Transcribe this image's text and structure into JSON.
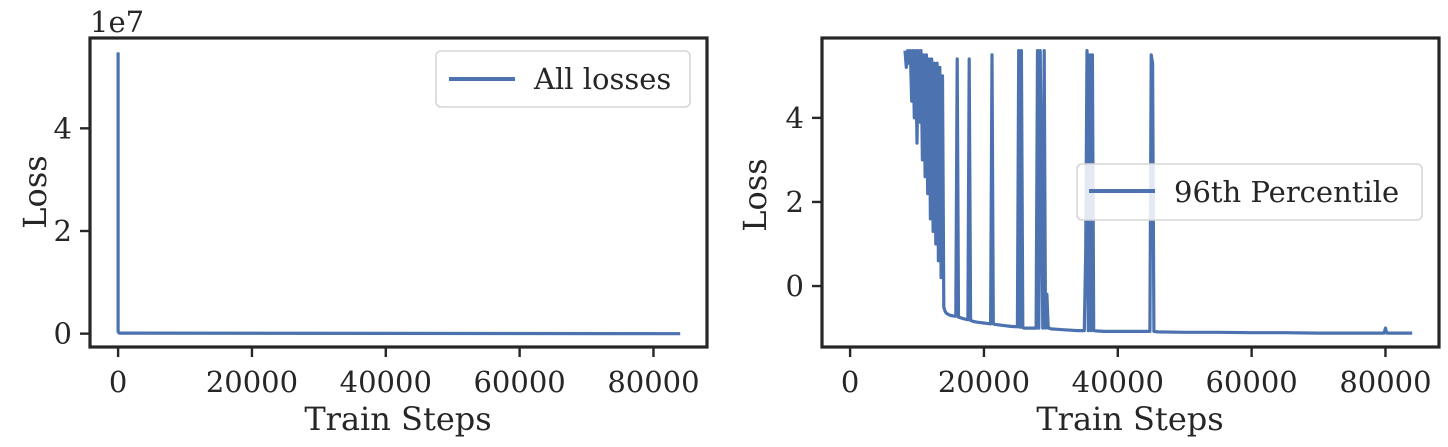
{
  "chart_data": [
    {
      "type": "line",
      "title": "",
      "xlabel": "Train Steps",
      "ylabel": "Loss",
      "y_offset_label": "1e7",
      "xlim": [
        -4200,
        88000
      ],
      "ylim": [
        -2.6,
        57.6
      ],
      "y_scale_factor": 10000000,
      "xticks": [
        0,
        20000,
        40000,
        60000,
        80000
      ],
      "xtick_labels": [
        "0",
        "20000",
        "40000",
        "60000",
        "80000"
      ],
      "yticks": [
        0,
        20,
        40
      ],
      "ytick_labels": [
        "0",
        "2",
        "4"
      ],
      "legend_position": "upper right",
      "grid": false,
      "series": [
        {
          "name": "All losses",
          "color": "#4c72b0",
          "x": [
            0,
            1,
            150,
            84000
          ],
          "y": [
            54.8,
            0.4,
            0.1,
            0.0
          ]
        }
      ]
    },
    {
      "type": "line",
      "title": "",
      "xlabel": "Train Steps",
      "ylabel": "Loss",
      "xlim": [
        -4200,
        88000
      ],
      "ylim": [
        -1.45,
        5.9
      ],
      "xticks": [
        0,
        20000,
        40000,
        60000,
        80000
      ],
      "xtick_labels": [
        "0",
        "20000",
        "40000",
        "60000",
        "80000"
      ],
      "yticks": [
        0,
        2,
        4
      ],
      "ytick_labels": [
        "0",
        "2",
        "4"
      ],
      "legend_position": "center right",
      "grid": false,
      "series": [
        {
          "name": "96th Percentile",
          "color": "#4c72b0",
          "x": [
            8200,
            8400,
            8600,
            8800,
            9000,
            9200,
            9400,
            9600,
            9800,
            10000,
            10200,
            10400,
            10600,
            10800,
            11000,
            11200,
            11400,
            11600,
            11800,
            12000,
            12200,
            12400,
            12600,
            12800,
            13000,
            13200,
            13400,
            13600,
            13800,
            14000,
            14200,
            14400,
            15000,
            15800,
            16000,
            16200,
            16400,
            17000,
            17600,
            17800,
            18000,
            18200,
            18400,
            19000,
            20000,
            21000,
            21200,
            21400,
            21600,
            22000,
            23000,
            24000,
            25000,
            25200,
            25400,
            25600,
            25800,
            26000,
            27000,
            27800,
            28000,
            28200,
            28400,
            28800,
            29000,
            29200,
            29400,
            29600,
            29800,
            30000,
            31000,
            32000,
            33000,
            34000,
            35000,
            35200,
            35400,
            35600,
            35800,
            36000,
            36200,
            36400,
            37000,
            38000,
            40000,
            42000,
            44000,
            44800,
            45000,
            45200,
            45400,
            46000,
            50000,
            55000,
            60000,
            65000,
            70000,
            75000,
            79800,
            80000,
            80200,
            84000
          ],
          "y": [
            5.6,
            5.2,
            5.6,
            5.3,
            5.6,
            4.4,
            5.6,
            4.0,
            5.6,
            3.4,
            5.6,
            3.9,
            5.6,
            3.0,
            5.5,
            2.6,
            5.5,
            2.2,
            5.4,
            1.6,
            5.4,
            1.3,
            5.3,
            1.0,
            5.3,
            0.6,
            5.2,
            0.2,
            5.0,
            -0.5,
            -0.6,
            -0.65,
            -0.7,
            -0.72,
            5.4,
            -0.74,
            -0.75,
            -0.78,
            -0.8,
            5.4,
            -0.82,
            -0.83,
            -0.84,
            -0.86,
            -0.88,
            -0.9,
            5.5,
            -0.9,
            -0.91,
            -0.92,
            -0.94,
            -0.96,
            -0.97,
            5.6,
            -0.98,
            5.6,
            -0.99,
            -1.0,
            -1.0,
            -1.0,
            5.6,
            -1.0,
            5.6,
            -1.0,
            5.6,
            -1.0,
            -0.2,
            -1.0,
            -1.0,
            -1.02,
            -1.03,
            -1.04,
            -1.05,
            -1.06,
            -1.06,
            0.8,
            5.6,
            -1.06,
            5.5,
            -1.06,
            5.5,
            -1.06,
            -1.07,
            -1.08,
            -1.08,
            -1.08,
            -1.08,
            -1.08,
            5.5,
            5.3,
            -1.08,
            -1.09,
            -1.1,
            -1.1,
            -1.11,
            -1.11,
            -1.12,
            -1.12,
            -1.12,
            -1.0,
            -1.12,
            -1.12
          ]
        }
      ]
    }
  ]
}
